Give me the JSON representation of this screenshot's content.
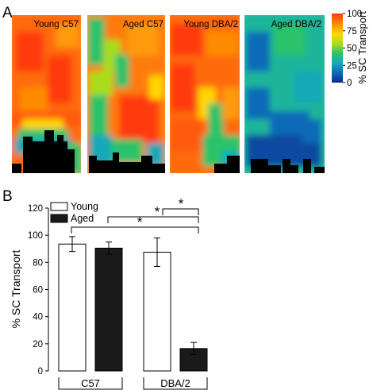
{
  "panels": {
    "a_label": "A",
    "b_label": "B"
  },
  "heatmaps": {
    "panel_titles": [
      "Young C57",
      "Aged C57",
      "Young DBA/2",
      "Aged DBA/2"
    ],
    "colorbar": {
      "label": "% SC Transport",
      "ticks": [
        0,
        25,
        50,
        75,
        100
      ],
      "colormap": [
        "#0a2a8a",
        "#0a6ab8",
        "#16a9b8",
        "#2cc26a",
        "#a8dc1c",
        "#ffd700",
        "#ff8c00",
        "#ff3a10"
      ]
    }
  },
  "chart_data": {
    "type": "bar",
    "categories": [
      "C57",
      "DBA/2"
    ],
    "series": [
      {
        "name": "Young",
        "values": [
          93.5,
          87.5
        ],
        "errors": [
          5.5,
          10.5
        ],
        "color": "#ffffff"
      },
      {
        "name": "Aged",
        "values": [
          90.5,
          16.5
        ],
        "errors": [
          4.5,
          4.5
        ],
        "color": "#1a1a1a"
      }
    ],
    "ylabel": "% SC Transport",
    "ylim": [
      0,
      120
    ],
    "yticks": [
      0,
      20,
      40,
      60,
      80,
      100,
      120
    ],
    "legend_position": "top-left",
    "significance": [
      {
        "text": "*",
        "from": "DBA/2 Young",
        "to": "DBA/2 Aged"
      },
      {
        "text": "*",
        "from": "C57 Aged",
        "to": "DBA/2 Aged"
      },
      {
        "text": "*",
        "from": "C57 Young",
        "to": "DBA/2 Aged"
      }
    ]
  }
}
